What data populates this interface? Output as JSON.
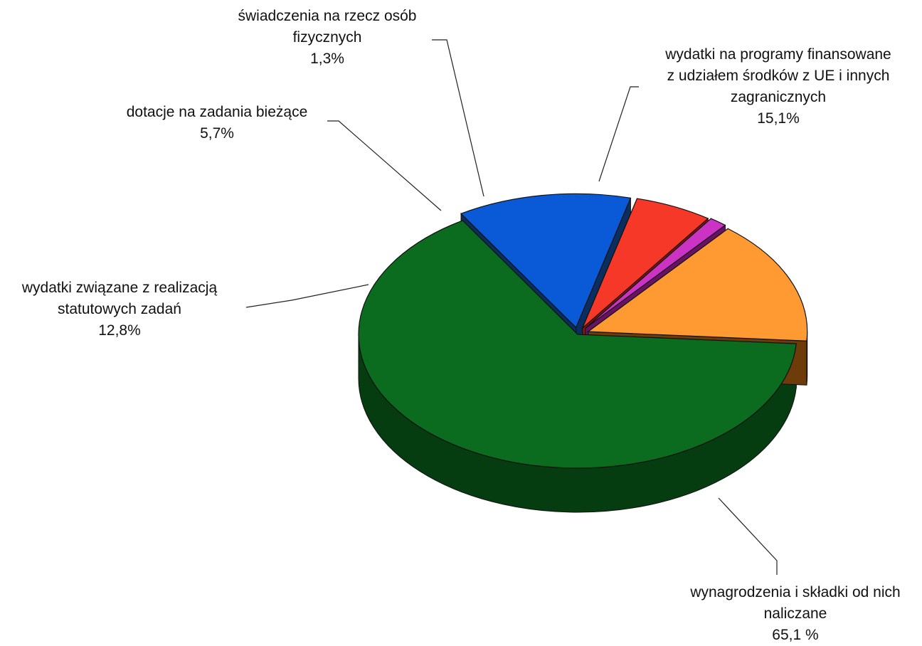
{
  "chart_data": {
    "type": "pie",
    "title": "",
    "style": "3d-exploded",
    "slices": [
      {
        "label_lines": [
          "wynagrodzenia i składki od nich",
          "naliczane"
        ],
        "value": 65.1,
        "value_text": "65,1 %",
        "color": "#0b6b1e",
        "side_color": "#053d10"
      },
      {
        "label_lines": [
          "wydatki związane z realizacją",
          "statutowych zadań"
        ],
        "value": 12.8,
        "value_text": "12,8%",
        "color": "#0a5ad8",
        "side_color": "#0a2e5e"
      },
      {
        "label_lines": [
          "dotacje na zadania bieżące"
        ],
        "value": 5.7,
        "value_text": "5,7%",
        "color": "#f53828",
        "side_color": "#8a1208"
      },
      {
        "label_lines": [
          "świadczenia na rzecz osób",
          "fizycznych"
        ],
        "value": 1.3,
        "value_text": "1,3%",
        "color": "#cc33c4",
        "side_color": "#6a1166"
      },
      {
        "label_lines": [
          "wydatki na programy finansowane",
          "z udziałem środków z UE i innych",
          "zagranicznych"
        ],
        "value": 15.1,
        "value_text": "15,1%",
        "color": "#ff9a33",
        "side_color": "#6e3b0a"
      }
    ]
  }
}
